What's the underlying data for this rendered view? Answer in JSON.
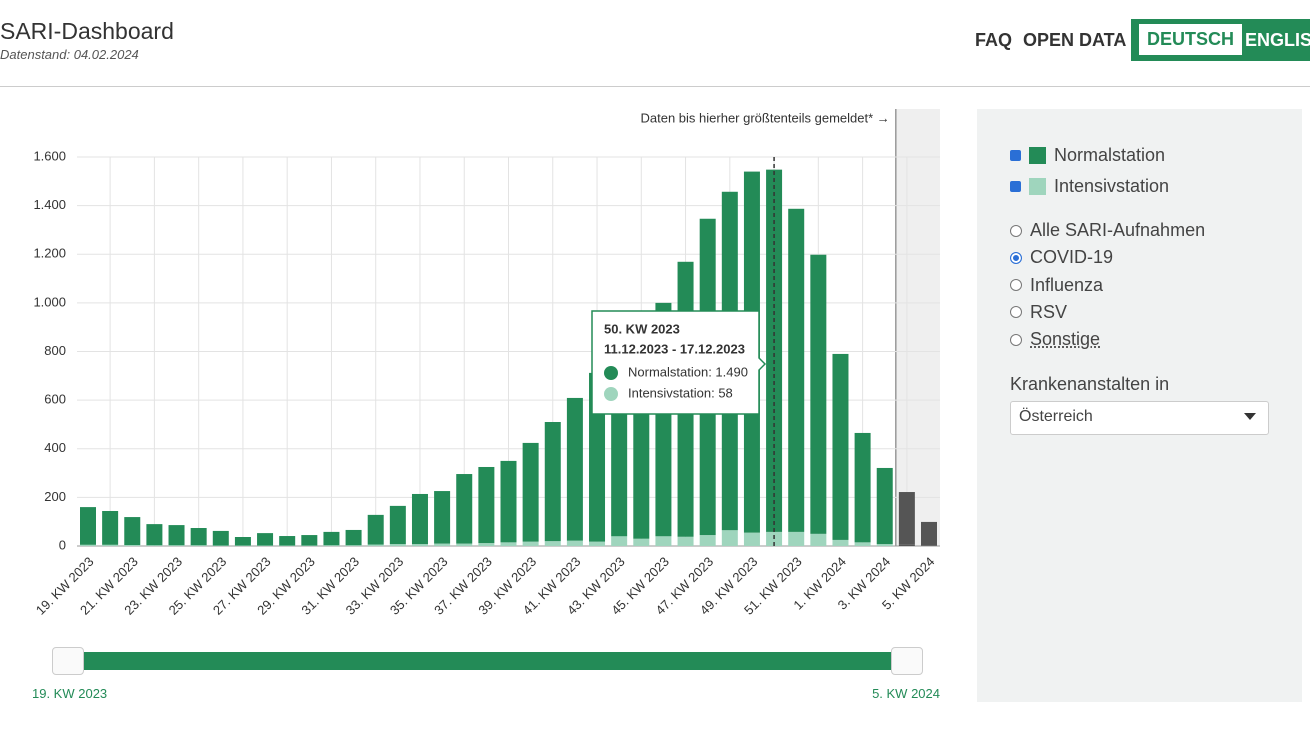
{
  "header": {
    "title": "SARI-Dashboard",
    "subtitle": "Datenstand: 04.02.2024"
  },
  "nav": {
    "links": [
      "FAQ",
      "OPEN DATA"
    ],
    "languages": [
      "DEUTSCH",
      "ENGLISH"
    ]
  },
  "chart_data": {
    "type": "bar",
    "stacked": true,
    "categories": [
      "19. KW 2023",
      null,
      "21. KW 2023",
      null,
      "23. KW 2023",
      null,
      "25. KW 2023",
      null,
      "27. KW 2023",
      null,
      "29. KW 2023",
      null,
      "31. KW 2023",
      null,
      "33. KW 2023",
      null,
      "35. KW 2023",
      null,
      "37. KW 2023",
      null,
      "39. KW 2023",
      null,
      "41. KW 2023",
      null,
      "43. KW 2023",
      null,
      "45. KW 2023",
      null,
      "47. KW 2023",
      null,
      "49. KW 2023",
      null,
      "51. KW 2023",
      null,
      "1. KW 2024",
      null,
      "3. KW 2024",
      null,
      "5. KW 2024"
    ],
    "series": [
      {
        "name": "Intensivstation",
        "color": "#9fd5bd",
        "values": [
          5,
          5,
          4,
          3,
          3,
          3,
          2,
          2,
          2,
          2,
          2,
          3,
          3,
          6,
          8,
          8,
          10,
          10,
          12,
          15,
          18,
          20,
          22,
          18,
          40,
          30,
          40,
          38,
          45,
          65,
          55,
          58,
          58,
          50,
          25,
          15,
          8,
          5,
          3
        ]
      },
      {
        "name": "Normalstation",
        "color": "#238b57",
        "values": [
          155,
          139,
          115,
          87,
          83,
          71,
          60,
          35,
          51,
          39,
          43,
          55,
          63,
          122,
          157,
          206,
          216,
          286,
          313,
          335,
          406,
          490,
          587,
          694,
          770,
          860,
          960,
          1131,
          1301,
          1392,
          1485,
          1490,
          1329,
          1148,
          765,
          450,
          313,
          217,
          96
        ]
      }
    ],
    "ylim": [
      0,
      1600
    ],
    "yticks": [
      0,
      200,
      400,
      600,
      800,
      {
        "value": 1000,
        "label": "1.000"
      },
      {
        "value": 1200,
        "label": "1.200"
      },
      {
        "value": 1400,
        "label": "1.400"
      },
      {
        "value": 1600,
        "label": "1.600"
      }
    ],
    "grid": true,
    "annotation": "Daten bis hierher größtenteils gemeldet* →",
    "shade_after": 36,
    "shade_color": "#555555",
    "marker_index": 31,
    "tooltip": {
      "title": "50. KW 2023",
      "dates": "11.12.2023 - 17.12.2023",
      "lines": [
        "Normalstation: 1.490",
        "Intensivstation: 58"
      ]
    }
  },
  "slider": {
    "start": "19. KW 2023",
    "end": "5. KW 2024"
  },
  "sidebar": {
    "radios": [
      "Alle SARI-Aufnahmen",
      "COVID-19",
      "Influenza",
      "RSV",
      "Sonstige"
    ],
    "selected_radio": 1,
    "region_label": "Krankenanstalten in",
    "region": "Österreich"
  }
}
